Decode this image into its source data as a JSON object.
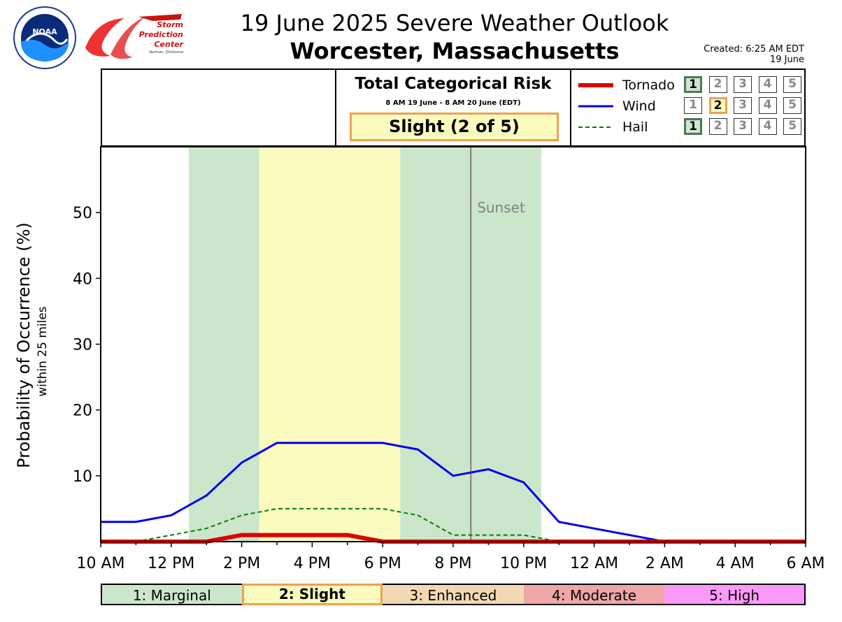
{
  "header": {
    "title": "19 June 2025 Severe Weather Outlook",
    "location": "Worcester, Massachusetts",
    "created_line1": "Created: 6:25 AM EDT",
    "created_line2": "19 June"
  },
  "logos": {
    "noaa_text": "NOAA",
    "spc_line1": "Storm",
    "spc_line2": "Prediction",
    "spc_line3": "Center",
    "spc_line4": "Norman, Oklahoma"
  },
  "categorical": {
    "title": "Total Categorical Risk",
    "window": "8 AM 19 June - 8 AM 20 June (EDT)",
    "risk": "Slight (2 of 5)"
  },
  "legend": [
    {
      "name": "Tornado",
      "color": "#dd0000",
      "style": "solid-thick",
      "active_level": 1,
      "active_style": "green"
    },
    {
      "name": "Wind",
      "color": "#0000ee",
      "style": "solid",
      "active_level": 2,
      "active_style": "orange"
    },
    {
      "name": "Hail",
      "color": "#008000",
      "style": "dashed",
      "active_level": 1,
      "active_style": "green"
    }
  ],
  "levels": [
    "1",
    "2",
    "3",
    "4",
    "5"
  ],
  "category_bar": [
    {
      "label": "1: Marginal",
      "color": "#cce6cc"
    },
    {
      "label": "2: Slight",
      "color": "#fbfbbf"
    },
    {
      "label": "3: Enhanced",
      "color": "#f2d9b3"
    },
    {
      "label": "4: Moderate",
      "color": "#eea6a6"
    },
    {
      "label": "5: High",
      "color": "#fb99fb"
    }
  ],
  "chart_data": {
    "type": "line",
    "ylabel": "Probability of Occurrence (%)",
    "ylabel_sub": "within 25 miles",
    "ylim": [
      0,
      60
    ],
    "y_ticks": [
      "10",
      "20",
      "30",
      "40",
      "50"
    ],
    "x_tick_labels": [
      "10 AM",
      "12 PM",
      "2 PM",
      "4 PM",
      "6 PM",
      "8 PM",
      "10 PM",
      "12 AM",
      "2 AM",
      "4 AM",
      "6 AM"
    ],
    "x_hours": [
      0,
      1,
      2,
      3,
      4,
      5,
      6,
      7,
      8,
      9,
      10,
      11,
      12,
      13,
      14,
      15,
      16,
      17,
      18,
      19,
      20
    ],
    "series": [
      {
        "name": "Tornado",
        "values": [
          0,
          0,
          0,
          0,
          1,
          1,
          1,
          1,
          0,
          0,
          0,
          0,
          0,
          0,
          0,
          0,
          0,
          0,
          0,
          0,
          0
        ]
      },
      {
        "name": "Wind",
        "values": [
          3,
          3,
          4,
          7,
          12,
          15,
          15,
          15,
          15,
          14,
          10,
          11,
          9,
          3,
          2,
          1,
          0,
          0,
          0,
          0,
          0
        ]
      },
      {
        "name": "Hail",
        "values": [
          0,
          0,
          1,
          2,
          4,
          5,
          5,
          5,
          5,
          4,
          1,
          1,
          1,
          0,
          0,
          0,
          0,
          0,
          0,
          0,
          0
        ]
      }
    ],
    "risk_shading": [
      {
        "start": "12:30 PM",
        "end": "2:30 PM",
        "category": "1: Marginal"
      },
      {
        "start": "2:30 PM",
        "end": "6:30 PM",
        "category": "2: Slight"
      },
      {
        "start": "6:30 PM",
        "end": "10:30 PM",
        "category": "1: Marginal"
      }
    ],
    "sunset": {
      "time": "8:30 PM",
      "label": "Sunset"
    }
  }
}
